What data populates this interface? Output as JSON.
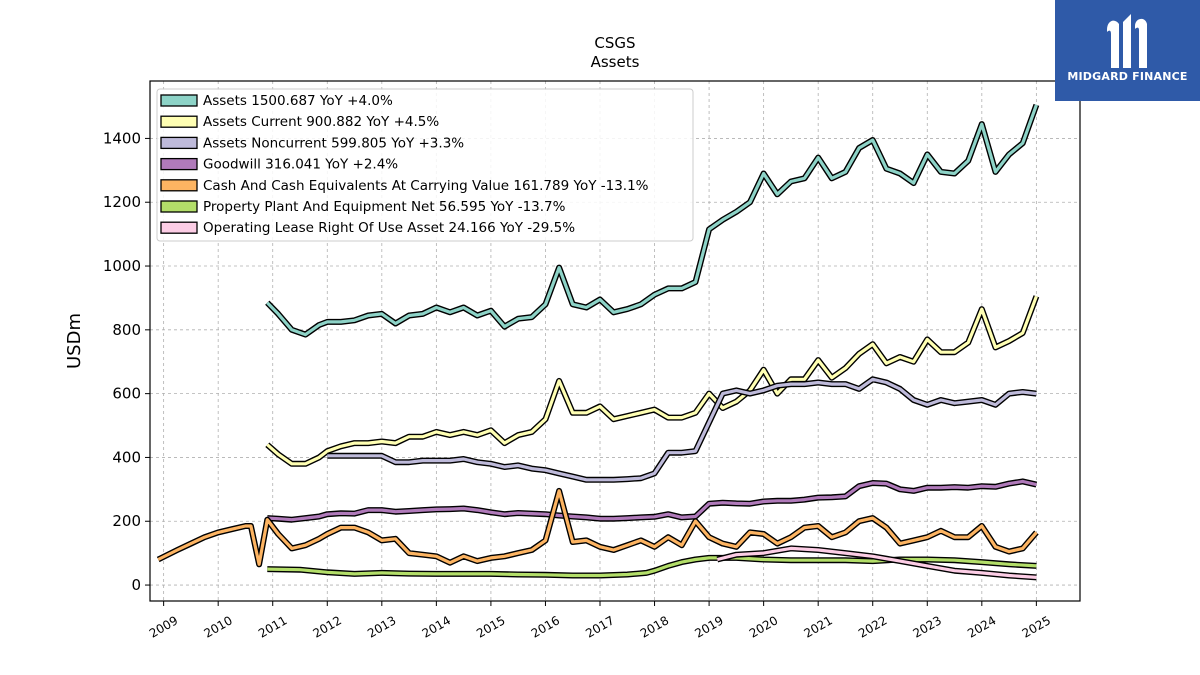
{
  "brand": {
    "name": "MIDGARD FINANCE",
    "bg_color": "#2f5aa8"
  },
  "chart_data": {
    "type": "line",
    "title": "CSGS",
    "subtitle": "Assets",
    "ylabel": "USDm",
    "xlabel": "",
    "xlim": [
      2008.75,
      2025.8
    ],
    "ylim": [
      -50,
      1580
    ],
    "x_ticks": [
      2009,
      2010,
      2011,
      2012,
      2013,
      2014,
      2015,
      2016,
      2017,
      2018,
      2019,
      2020,
      2021,
      2022,
      2023,
      2024,
      2025
    ],
    "y_ticks": [
      0,
      200,
      400,
      600,
      800,
      1000,
      1200,
      1400
    ],
    "grid": true,
    "legend_position": "top-left",
    "series": [
      {
        "name": "Assets",
        "legend": "Assets  1500.687 YoY +4.0%",
        "color": "#8dd3c7",
        "x": [
          2010.9,
          2011.1,
          2011.35,
          2011.6,
          2011.85,
          2012.0,
          2012.25,
          2012.5,
          2012.75,
          2013.0,
          2013.25,
          2013.5,
          2013.75,
          2014.0,
          2014.25,
          2014.5,
          2014.75,
          2015.0,
          2015.25,
          2015.5,
          2015.75,
          2016.0,
          2016.25,
          2016.5,
          2016.75,
          2017.0,
          2017.25,
          2017.5,
          2017.75,
          2018.0,
          2018.25,
          2018.5,
          2018.75,
          2019.0,
          2019.25,
          2019.5,
          2019.75,
          2020.0,
          2020.25,
          2020.5,
          2020.75,
          2021.0,
          2021.25,
          2021.5,
          2021.75,
          2022.0,
          2022.25,
          2022.5,
          2022.75,
          2023.0,
          2023.25,
          2023.5,
          2023.75,
          2024.0,
          2024.25,
          2024.5,
          2024.75,
          2025.0
        ],
        "y": [
          885,
          850,
          800,
          785,
          815,
          825,
          825,
          830,
          845,
          850,
          820,
          845,
          850,
          870,
          855,
          870,
          845,
          860,
          810,
          835,
          840,
          880,
          995,
          880,
          870,
          895,
          855,
          865,
          880,
          910,
          930,
          930,
          950,
          1115,
          1145,
          1170,
          1200,
          1290,
          1225,
          1265,
          1275,
          1340,
          1275,
          1295,
          1370,
          1395,
          1305,
          1290,
          1260,
          1350,
          1295,
          1290,
          1330,
          1445,
          1295,
          1350,
          1385,
          1505
        ]
      },
      {
        "name": "Assets Current",
        "legend": "Assets Current  900.882 YoY +4.5%",
        "color": "#ffffb3",
        "x": [
          2010.9,
          2011.1,
          2011.35,
          2011.6,
          2011.85,
          2012.0,
          2012.25,
          2012.5,
          2012.75,
          2013.0,
          2013.25,
          2013.5,
          2013.75,
          2014.0,
          2014.25,
          2014.5,
          2014.75,
          2015.0,
          2015.25,
          2015.5,
          2015.75,
          2016.0,
          2016.25,
          2016.5,
          2016.75,
          2017.0,
          2017.25,
          2017.5,
          2017.75,
          2018.0,
          2018.25,
          2018.5,
          2018.75,
          2019.0,
          2019.25,
          2019.5,
          2019.75,
          2020.0,
          2020.25,
          2020.5,
          2020.75,
          2021.0,
          2021.25,
          2021.5,
          2021.75,
          2022.0,
          2022.25,
          2022.5,
          2022.75,
          2023.0,
          2023.25,
          2023.5,
          2023.75,
          2024.0,
          2024.25,
          2024.5,
          2024.75,
          2025.0
        ],
        "y": [
          440,
          410,
          380,
          380,
          400,
          420,
          435,
          445,
          445,
          450,
          445,
          465,
          465,
          480,
          470,
          480,
          470,
          485,
          445,
          470,
          480,
          520,
          640,
          540,
          540,
          560,
          520,
          530,
          540,
          550,
          525,
          525,
          540,
          600,
          555,
          575,
          610,
          675,
          600,
          645,
          645,
          705,
          650,
          680,
          725,
          755,
          695,
          715,
          700,
          770,
          730,
          730,
          760,
          865,
          745,
          765,
          790,
          905
        ]
      },
      {
        "name": "Assets Noncurrent",
        "legend": "Assets Noncurrent  599.805 YoY +3.3%",
        "color": "#bebada",
        "x": [
          2012.0,
          2012.25,
          2012.5,
          2012.75,
          2013.0,
          2013.25,
          2013.5,
          2013.75,
          2014.0,
          2014.25,
          2014.5,
          2014.75,
          2015.0,
          2015.25,
          2015.5,
          2015.75,
          2016.0,
          2016.25,
          2016.5,
          2016.75,
          2017.0,
          2017.25,
          2017.5,
          2017.75,
          2018.0,
          2018.25,
          2018.5,
          2018.75,
          2019.0,
          2019.25,
          2019.5,
          2019.75,
          2020.0,
          2020.25,
          2020.5,
          2020.75,
          2021.0,
          2021.25,
          2021.5,
          2021.75,
          2022.0,
          2022.25,
          2022.5,
          2022.75,
          2023.0,
          2023.25,
          2023.5,
          2023.75,
          2024.0,
          2024.25,
          2024.5,
          2024.75,
          2025.0
        ],
        "y": [
          405,
          405,
          405,
          405,
          405,
          385,
          385,
          390,
          390,
          390,
          395,
          385,
          380,
          370,
          375,
          365,
          360,
          350,
          340,
          330,
          330,
          330,
          332,
          335,
          350,
          415,
          415,
          420,
          510,
          600,
          610,
          600,
          610,
          625,
          630,
          630,
          635,
          630,
          630,
          615,
          645,
          635,
          615,
          580,
          565,
          580,
          570,
          575,
          580,
          565,
          600,
          605,
          600
        ]
      },
      {
        "name": "Goodwill",
        "legend": "Goodwill  316.041 YoY +2.4%",
        "color": "#b07aba",
        "x": [
          2010.9,
          2011.1,
          2011.35,
          2011.6,
          2011.85,
          2012.0,
          2012.25,
          2012.5,
          2012.75,
          2013.0,
          2013.25,
          2013.5,
          2013.75,
          2014.0,
          2014.25,
          2014.5,
          2014.75,
          2015.0,
          2015.25,
          2015.5,
          2015.75,
          2016.0,
          2016.25,
          2016.5,
          2016.75,
          2017.0,
          2017.25,
          2017.5,
          2017.75,
          2018.0,
          2018.25,
          2018.5,
          2018.75,
          2019.0,
          2019.25,
          2019.5,
          2019.75,
          2020.0,
          2020.25,
          2020.5,
          2020.75,
          2021.0,
          2021.25,
          2021.5,
          2021.75,
          2022.0,
          2022.25,
          2022.5,
          2022.75,
          2023.0,
          2023.25,
          2023.5,
          2023.75,
          2024.0,
          2024.25,
          2024.5,
          2024.75,
          2025.0
        ],
        "y": [
          210,
          208,
          205,
          210,
          215,
          222,
          225,
          224,
          235,
          235,
          230,
          232,
          235,
          237,
          238,
          240,
          235,
          228,
          222,
          226,
          224,
          222,
          218,
          215,
          212,
          208,
          208,
          210,
          212,
          214,
          222,
          212,
          215,
          255,
          258,
          256,
          255,
          262,
          264,
          264,
          268,
          274,
          275,
          278,
          310,
          320,
          318,
          300,
          295,
          305,
          305,
          307,
          305,
          310,
          308,
          318,
          325,
          315
        ]
      },
      {
        "name": "Cash And Cash Equivalents At Carrying Value",
        "legend": "Cash And Cash Equivalents At Carrying Value  161.789 YoY -13.1%",
        "color": "#fdb462",
        "x": [
          2008.9,
          2009.25,
          2009.5,
          2009.75,
          2010.0,
          2010.25,
          2010.5,
          2010.6,
          2010.75,
          2010.9,
          2011.1,
          2011.35,
          2011.6,
          2011.85,
          2012.0,
          2012.25,
          2012.5,
          2012.75,
          2013.0,
          2013.25,
          2013.5,
          2013.75,
          2014.0,
          2014.25,
          2014.5,
          2014.75,
          2015.0,
          2015.25,
          2015.5,
          2015.75,
          2016.0,
          2016.25,
          2016.5,
          2016.75,
          2017.0,
          2017.25,
          2017.5,
          2017.75,
          2018.0,
          2018.25,
          2018.5,
          2018.75,
          2019.0,
          2019.25,
          2019.5,
          2019.75,
          2020.0,
          2020.25,
          2020.5,
          2020.75,
          2021.0,
          2021.25,
          2021.5,
          2021.75,
          2022.0,
          2022.25,
          2022.5,
          2022.75,
          2023.0,
          2023.25,
          2023.5,
          2023.75,
          2024.0,
          2024.25,
          2024.5,
          2024.75,
          2025.0
        ],
        "y": [
          80,
          110,
          130,
          150,
          165,
          175,
          185,
          185,
          65,
          205,
          160,
          115,
          125,
          145,
          160,
          180,
          180,
          165,
          140,
          145,
          100,
          95,
          90,
          70,
          90,
          75,
          85,
          90,
          100,
          110,
          140,
          295,
          135,
          140,
          120,
          110,
          125,
          140,
          120,
          150,
          125,
          200,
          150,
          130,
          120,
          165,
          160,
          130,
          150,
          180,
          185,
          150,
          165,
          200,
          210,
          180,
          130,
          140,
          150,
          170,
          150,
          150,
          185,
          120,
          105,
          115,
          165
        ]
      },
      {
        "name": "Property Plant And Equipment Net",
        "legend": "Property Plant And Equipment Net  56.595 YoY -13.7%",
        "color": "#b3de69",
        "x": [
          2010.9,
          2011.5,
          2012.0,
          2012.5,
          2013.0,
          2013.5,
          2014.0,
          2014.5,
          2015.0,
          2015.5,
          2016.0,
          2016.5,
          2017.0,
          2017.5,
          2017.85,
          2018.0,
          2018.25,
          2018.5,
          2018.75,
          2019.0,
          2019.5,
          2020.0,
          2020.5,
          2021.0,
          2021.5,
          2022.0,
          2022.5,
          2023.0,
          2023.5,
          2024.0,
          2024.5,
          2025.0
        ],
        "y": [
          50,
          48,
          40,
          35,
          38,
          36,
          35,
          35,
          35,
          33,
          32,
          30,
          30,
          33,
          38,
          45,
          60,
          72,
          80,
          85,
          85,
          80,
          78,
          78,
          78,
          75,
          80,
          80,
          78,
          72,
          65,
          60
        ]
      },
      {
        "name": "Operating Lease Right Of Use Asset",
        "legend": "Operating Lease Right Of Use Asset  24.166 YoY -29.5%",
        "color": "#fccde5",
        "x": [
          2019.15,
          2019.5,
          2020.0,
          2020.5,
          2021.0,
          2021.5,
          2022.0,
          2022.5,
          2023.0,
          2023.5,
          2024.0,
          2024.5,
          2025.0
        ],
        "y": [
          80,
          95,
          100,
          115,
          110,
          100,
          90,
          75,
          60,
          45,
          38,
          30,
          24
        ]
      }
    ]
  }
}
